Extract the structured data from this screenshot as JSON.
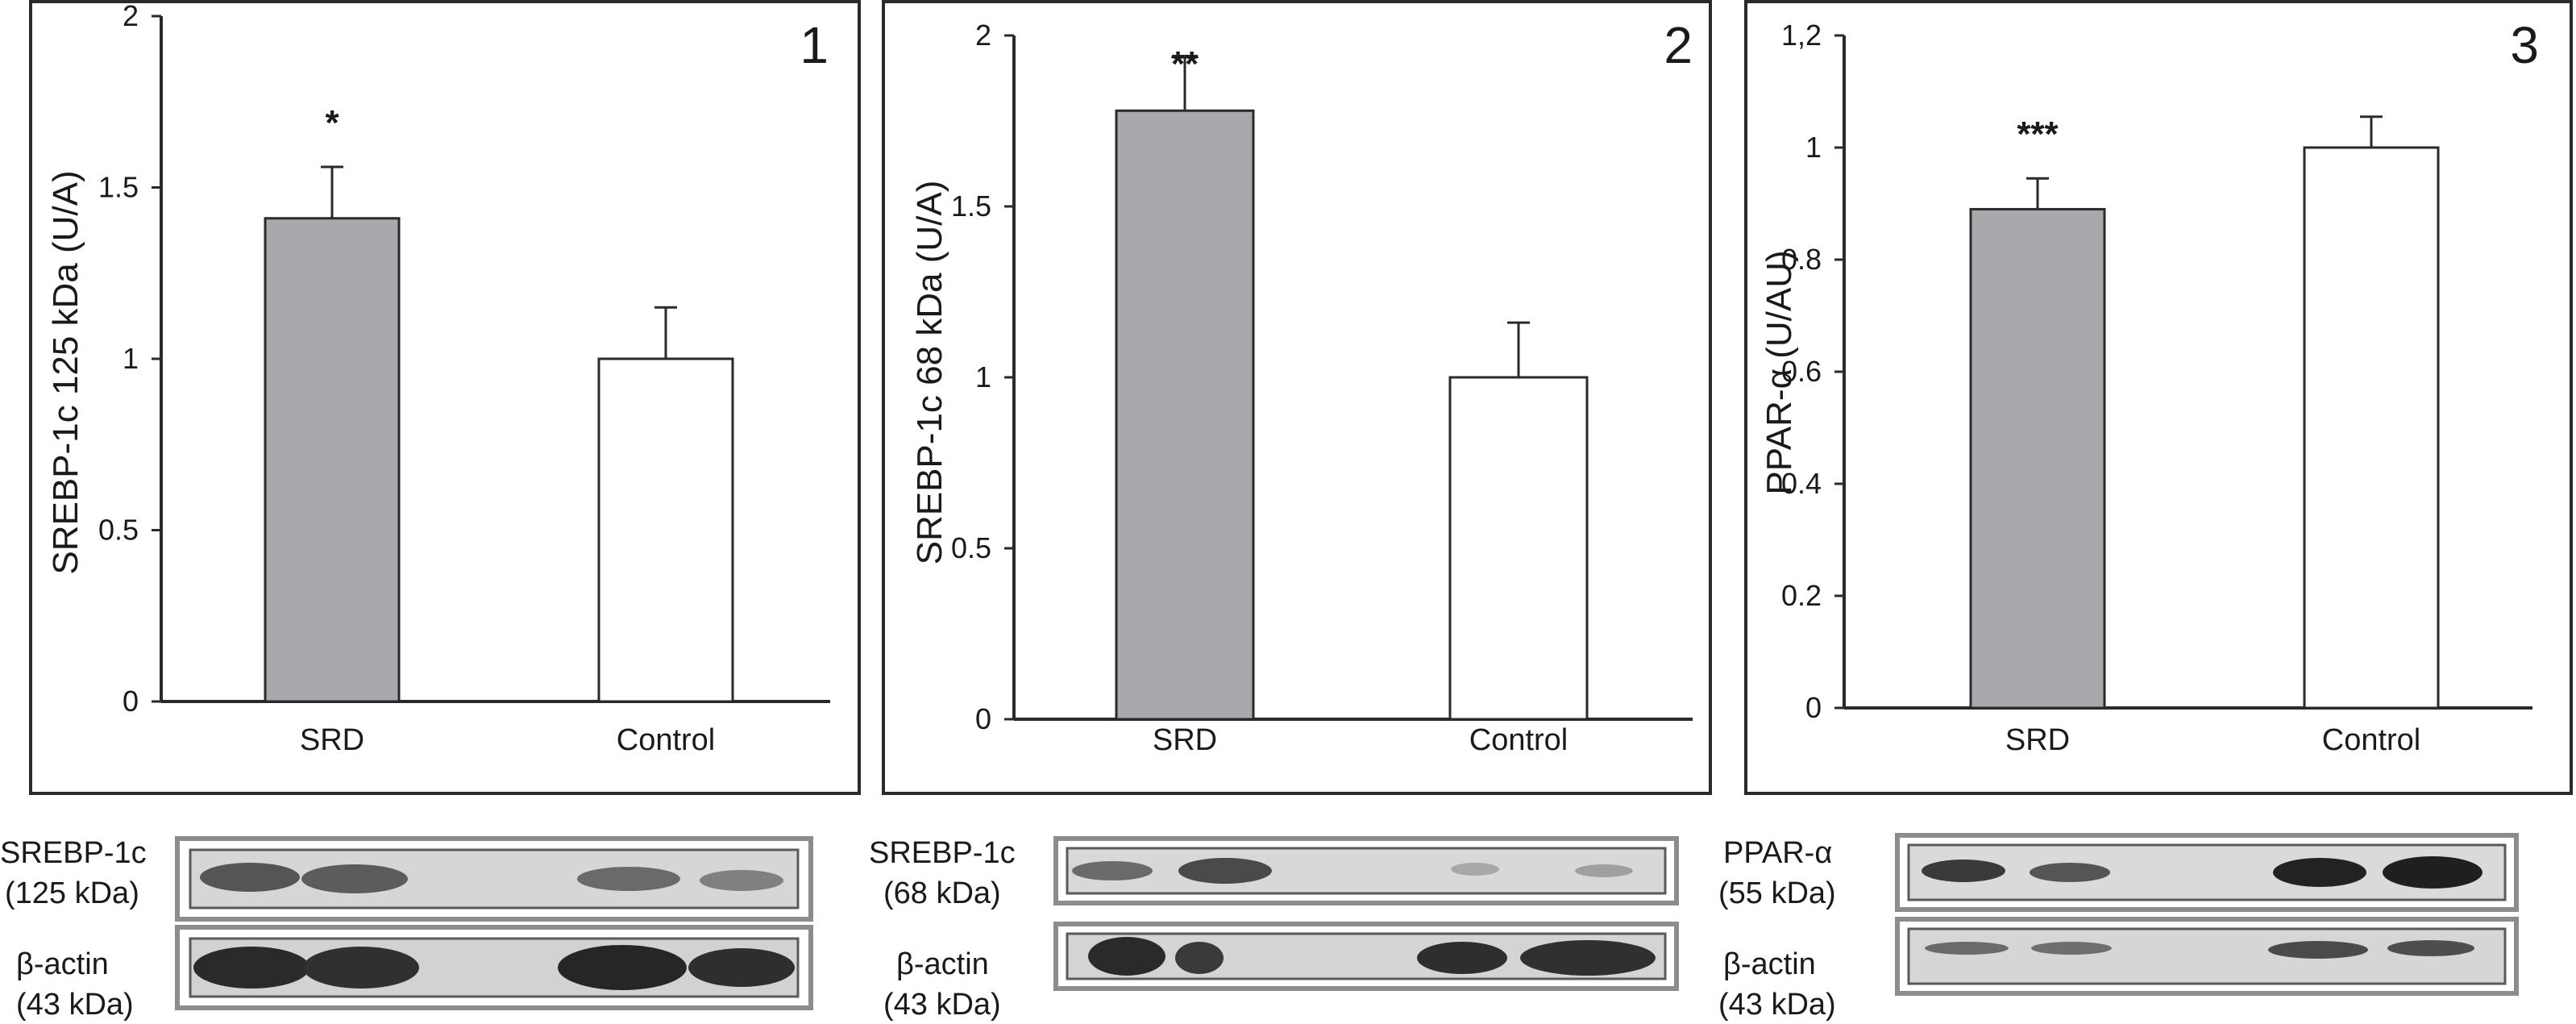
{
  "chart_data": [
    {
      "type": "bar",
      "panel_number": "1",
      "categories": [
        "SRD",
        "Control"
      ],
      "values": [
        1.41,
        1.0
      ],
      "errors": [
        0.15,
        0.15
      ],
      "significance": [
        "*",
        ""
      ],
      "ylabel": "SREBP-1c 125 kDa (U/A)",
      "ylim": [
        0,
        2
      ],
      "ytick_values": [
        0,
        0.5,
        1,
        1.5,
        2
      ],
      "ytick_labels": [
        "0",
        "0.5",
        "1",
        "1.5",
        "2"
      ],
      "bar_colors": [
        "#a7a9ac",
        "#ffffff"
      ],
      "grid": false
    },
    {
      "type": "bar",
      "panel_number": "2",
      "categories": [
        "SRD",
        "Control"
      ],
      "values": [
        1.78,
        1.0
      ],
      "errors": [
        0.16,
        0.16
      ],
      "significance": [
        "**",
        ""
      ],
      "ylabel": "SREBP-1c 68 kDa (U/A)",
      "ylim": [
        0,
        2
      ],
      "ytick_values": [
        0,
        0.5,
        1,
        1.5,
        2
      ],
      "ytick_labels": [
        "0",
        "0.5",
        "1",
        "1.5",
        "2"
      ],
      "bar_colors": [
        "#a7a9ac",
        "#ffffff"
      ],
      "grid": false
    },
    {
      "type": "bar",
      "panel_number": "3",
      "categories": [
        "SRD",
        "Control"
      ],
      "values": [
        0.89,
        1.0
      ],
      "errors": [
        0.055,
        0.055
      ],
      "significance": [
        "***",
        ""
      ],
      "ylabel": "PPAR-α (U/AU)",
      "ylim": [
        0,
        1.2
      ],
      "ytick_values": [
        0,
        0.2,
        0.4,
        0.6,
        0.8,
        1,
        1.2
      ],
      "ytick_labels": [
        "0",
        "0.2",
        "0.4",
        "0.6",
        "0.8",
        "1",
        "1,2"
      ],
      "bar_colors": [
        "#a7a9ac",
        "#ffffff"
      ],
      "grid": false
    }
  ],
  "blots": [
    {
      "target": {
        "name": "SREBP-1c",
        "size": "(125 kDa)"
      },
      "control": {
        "name": "β-actin",
        "size": "(43 kDa)"
      }
    },
    {
      "target": {
        "name": "SREBP-1c",
        "size": "(68 kDa)"
      },
      "control": {
        "name": "β-actin",
        "size": "(43 kDa)"
      }
    },
    {
      "target": {
        "name": "PPAR-α",
        "size": "(55 kDa)"
      },
      "control": {
        "name": "β-actin",
        "size": "(43 kDa)"
      }
    }
  ]
}
